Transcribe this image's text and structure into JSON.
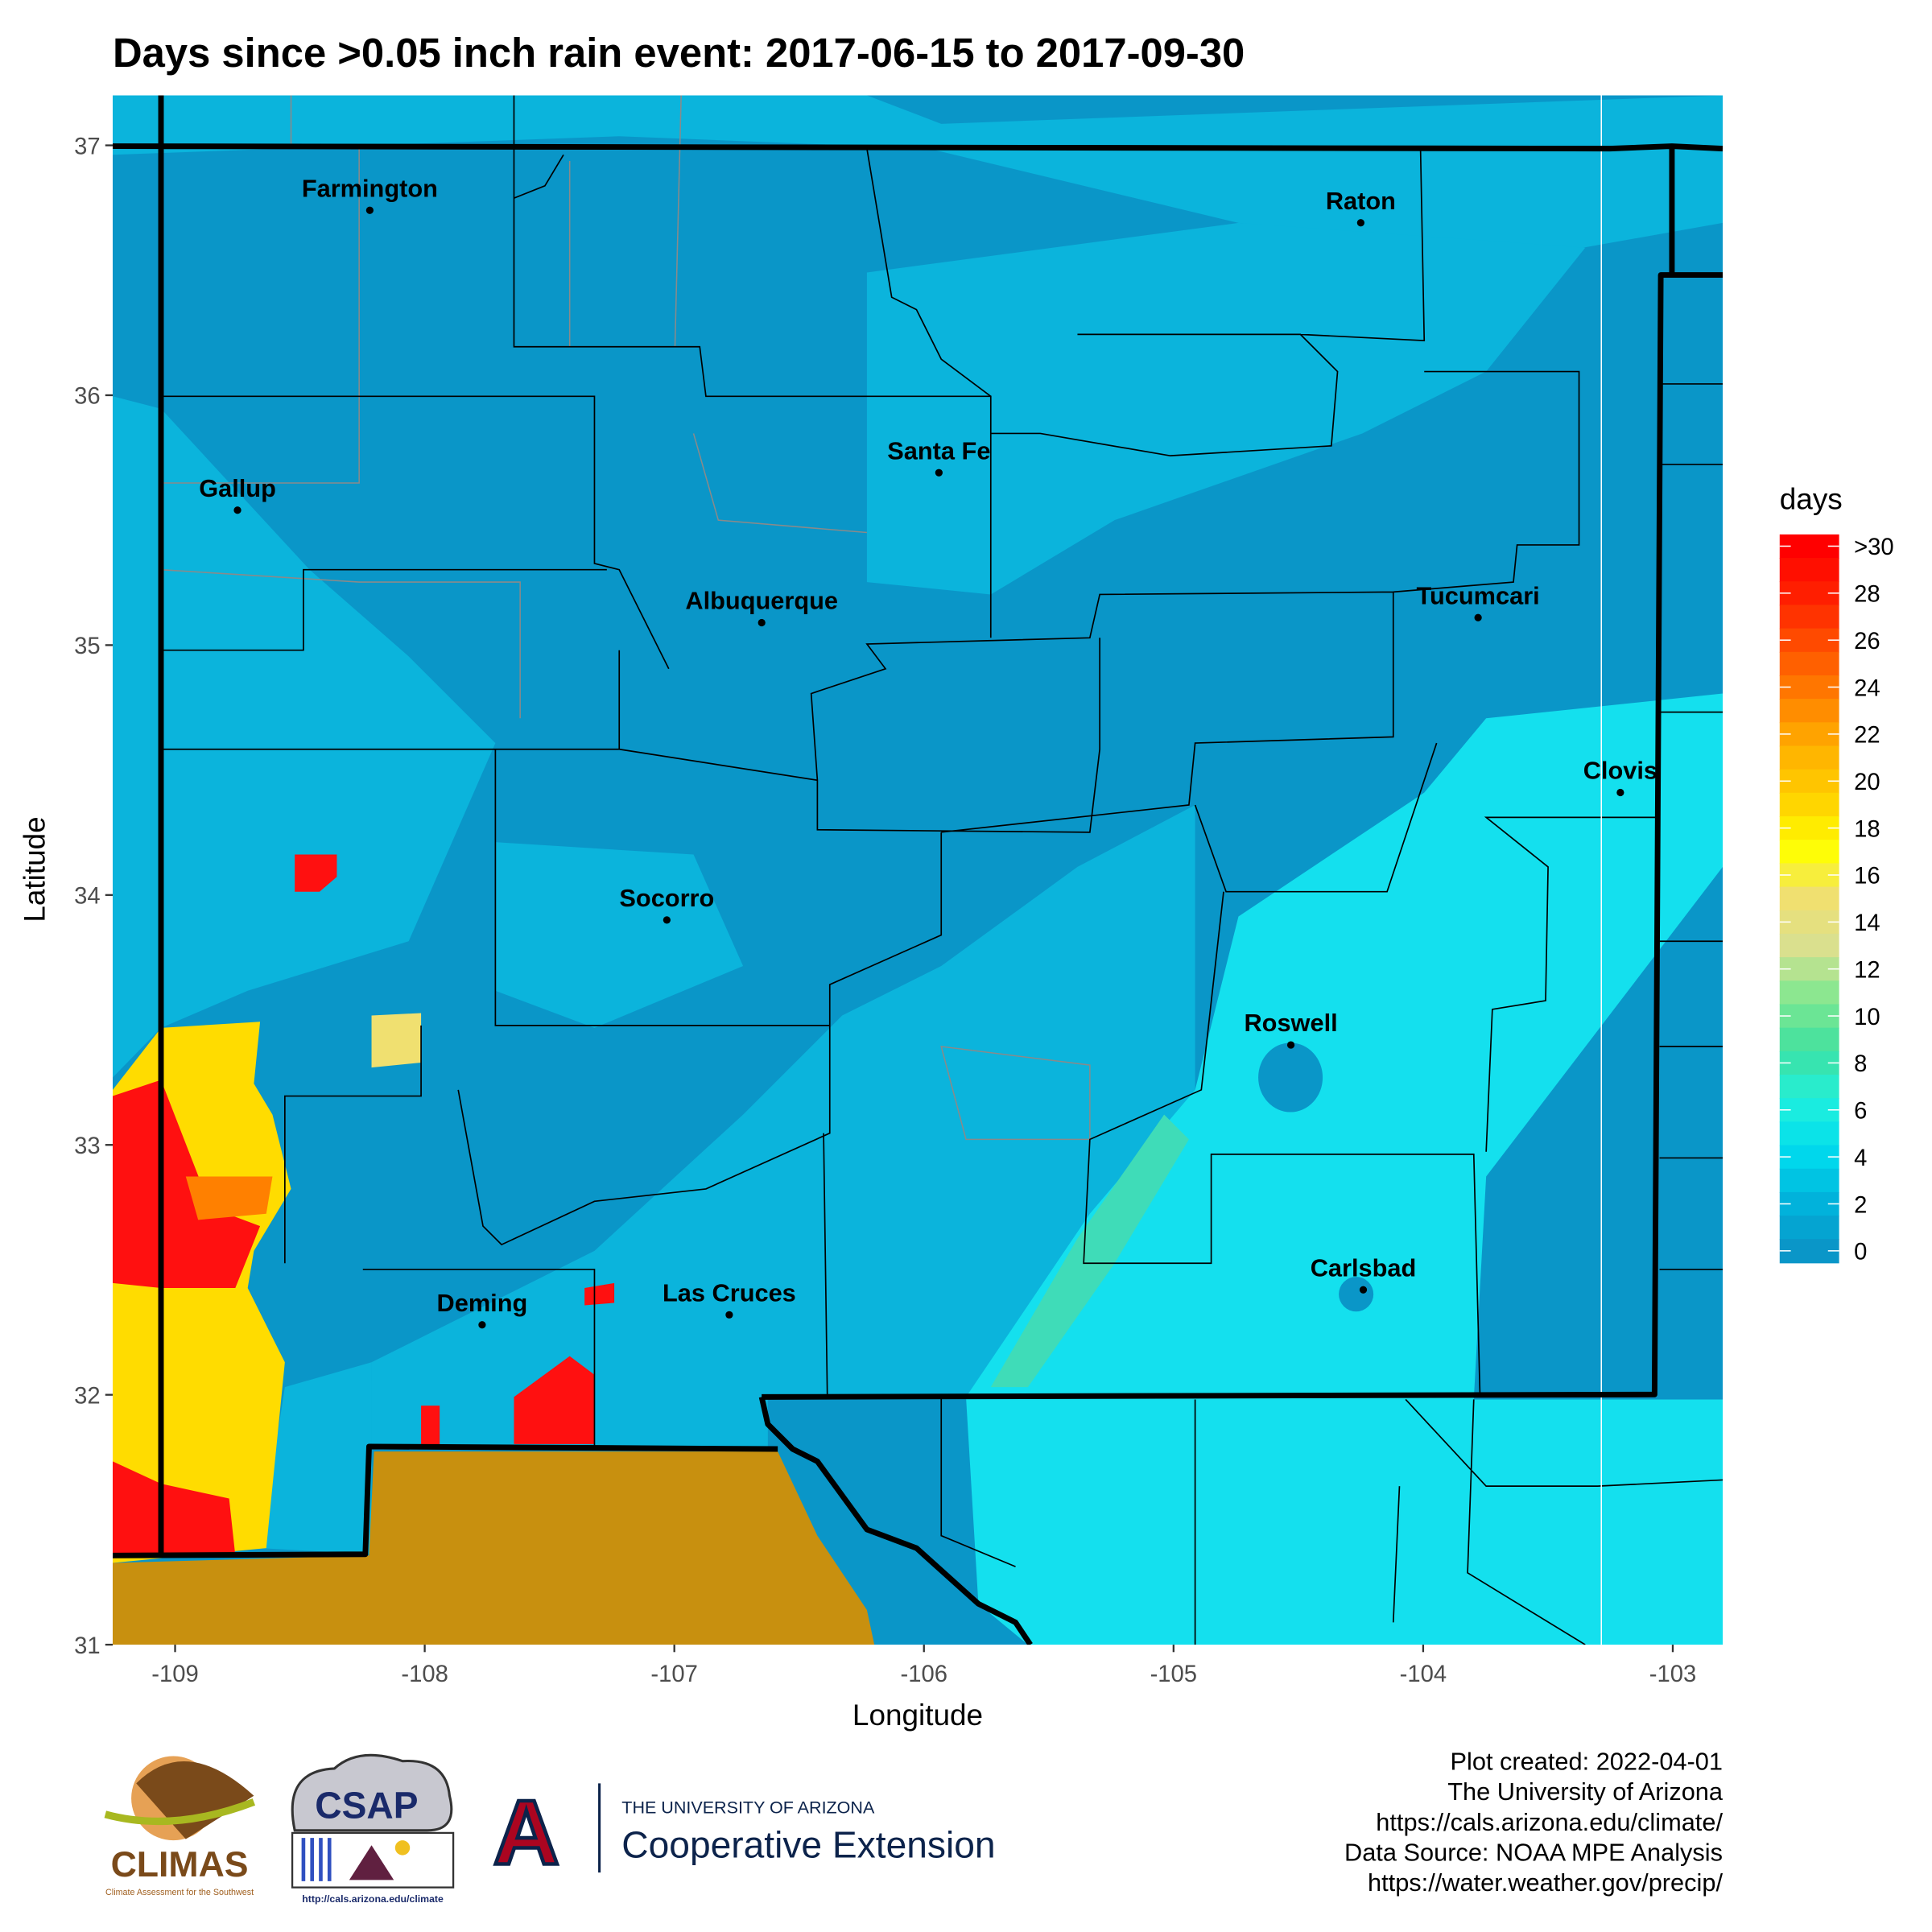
{
  "title": "Days since >0.05 inch rain event: 2017-06-15 to 2017-09-30",
  "x_axis": {
    "label": "Longitude",
    "lim": [
      -109.25,
      -102.8
    ],
    "ticks": [
      -109,
      -108,
      -107,
      -106,
      -105,
      -104,
      -103
    ]
  },
  "y_axis": {
    "label": "Latitude",
    "lim": [
      31,
      37.2
    ],
    "ticks": [
      31,
      32,
      33,
      34,
      35,
      36,
      37
    ]
  },
  "cities": [
    {
      "name": "Farmington",
      "lon": -108.22,
      "lat": 36.74
    },
    {
      "name": "Raton",
      "lon": -104.25,
      "lat": 36.69
    },
    {
      "name": "Santa Fe",
      "lon": -105.94,
      "lat": 35.69
    },
    {
      "name": "Gallup",
      "lon": -108.75,
      "lat": 35.54
    },
    {
      "name": "Albuquerque",
      "lon": -106.65,
      "lat": 35.09
    },
    {
      "name": "Tucumcari",
      "lon": -103.78,
      "lat": 35.11
    },
    {
      "name": "Clovis",
      "lon": -103.21,
      "lat": 34.41
    },
    {
      "name": "Socorro",
      "lon": -107.03,
      "lat": 33.9
    },
    {
      "name": "Roswell",
      "lon": -104.53,
      "lat": 33.4
    },
    {
      "name": "Carlsbad",
      "lon": -104.24,
      "lat": 32.42
    },
    {
      "name": "Deming",
      "lon": -107.77,
      "lat": 32.28
    },
    {
      "name": "Las Cruces",
      "lon": -106.78,
      "lat": 32.32
    }
  ],
  "legend": {
    "title": "days",
    "ticks": [
      0,
      2,
      4,
      6,
      8,
      10,
      12,
      14,
      16,
      18,
      20,
      22,
      24,
      26,
      28,
      {
        "value": 30,
        "label": ">30"
      }
    ],
    "colors": [
      "#0a96c8",
      "#00b4dc",
      "#00dcee",
      "#20f0dc",
      "#40e0a0",
      "#80e890",
      "#d8e090",
      "#f0e070",
      "#ffff00",
      "#ffd000",
      "#ffb000",
      "#ff8000",
      "#ff5000",
      "#ff2000",
      "#ff0000"
    ]
  },
  "footer": [
    "Plot created: 2022-04-01",
    "The University of Arizona",
    "https://cals.arizona.edu/climate/",
    "Data Source: NOAA MPE Analysis",
    "https://water.weather.gov/precip/"
  ],
  "logos": {
    "climas": "CLIMAS",
    "climas_sub": "Climate Assessment for the Southwest",
    "csap": "CSAP",
    "csap_url": "http://cals.arizona.edu/climate",
    "ua_letter": "A",
    "ua_top": "THE UNIVERSITY OF ARIZONA",
    "ua_bottom": "Cooperative Extension"
  }
}
